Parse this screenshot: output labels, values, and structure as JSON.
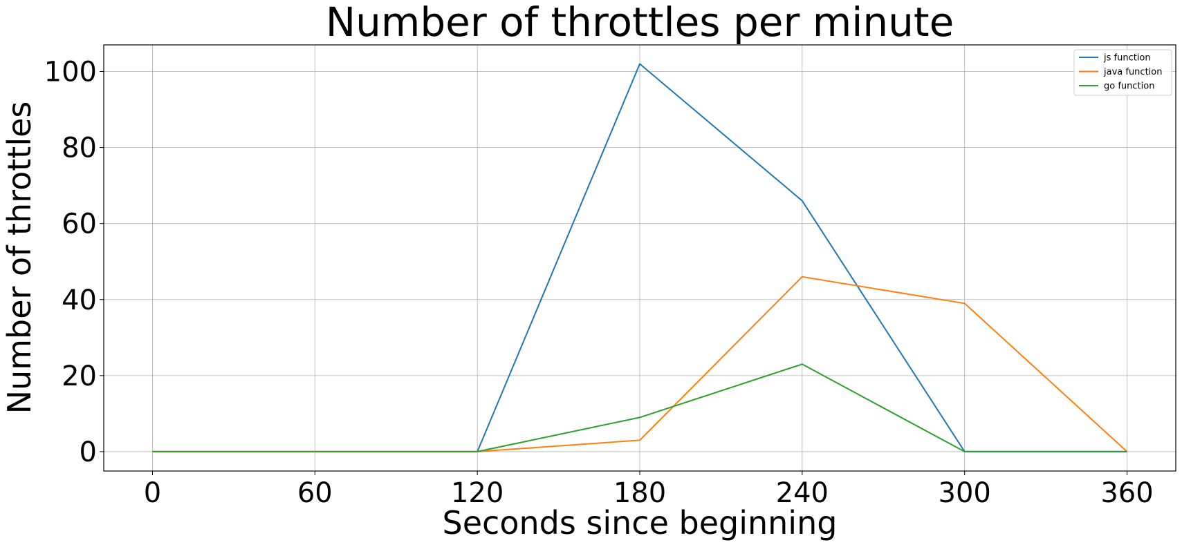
{
  "chart_data": {
    "type": "line",
    "title": "Number of throttles per minute",
    "xlabel": "Seconds since beginning",
    "ylabel": "Number of throttles",
    "x": [
      0,
      60,
      120,
      180,
      240,
      300,
      360
    ],
    "xticks": [
      "0",
      "60",
      "120",
      "180",
      "240",
      "300",
      "360"
    ],
    "yticks": [
      "0",
      "20",
      "40",
      "60",
      "80",
      "100"
    ],
    "xlim": [
      -18,
      378
    ],
    "ylim": [
      -5.1,
      107
    ],
    "grid": true,
    "legend_position": "top-right",
    "series": [
      {
        "name": "js function",
        "color": "#1f77b4",
        "values": [
          0,
          0,
          0,
          102,
          66,
          0,
          0
        ]
      },
      {
        "name": "java function",
        "color": "#ff7f0e",
        "values": [
          0,
          0,
          0,
          3,
          46,
          39,
          0
        ]
      },
      {
        "name": "go function",
        "color": "#2ca02c",
        "values": [
          0,
          0,
          0,
          9,
          23,
          0,
          0
        ]
      }
    ]
  }
}
